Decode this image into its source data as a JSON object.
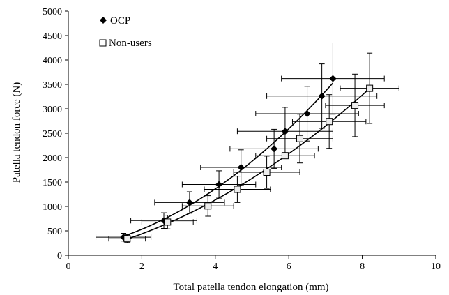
{
  "chart_data": {
    "type": "scatter",
    "title": "",
    "xlabel": "Total patella tendon elongation (mm)",
    "ylabel": "Patella tendon force (N)",
    "xlim": [
      0,
      10
    ],
    "ylim": [
      0,
      5000
    ],
    "xticks": [
      0,
      2,
      4,
      6,
      8,
      10
    ],
    "yticks": [
      0,
      500,
      1000,
      1500,
      2000,
      2500,
      3000,
      3500,
      4000,
      4500,
      5000
    ],
    "grid": false,
    "legend_position": "top-left",
    "series": [
      {
        "name": "OCP",
        "marker": "filled-diamond",
        "color": "#000000",
        "x": [
          1.5,
          2.6,
          3.3,
          4.1,
          4.7,
          5.6,
          5.9,
          6.5,
          6.9,
          7.2
        ],
        "y": [
          370,
          710,
          1080,
          1450,
          1800,
          2180,
          2540,
          2900,
          3260,
          3620
        ],
        "x_err": [
          0.75,
          0.9,
          0.95,
          1.0,
          1.1,
          1.2,
          1.3,
          1.4,
          1.5,
          1.4
        ],
        "y_err": [
          80,
          160,
          220,
          280,
          360,
          400,
          490,
          560,
          660,
          730
        ],
        "fit_curve": true
      },
      {
        "name": "Non-users",
        "marker": "open-square",
        "color": "#000000",
        "x": [
          1.6,
          2.7,
          3.8,
          4.6,
          5.4,
          5.9,
          6.3,
          7.1,
          7.8,
          8.2
        ],
        "y": [
          340,
          680,
          1010,
          1350,
          1700,
          2040,
          2390,
          2740,
          3070,
          3420
        ],
        "x_err": [
          0.5,
          0.7,
          0.7,
          0.9,
          0.9,
          0.8,
          0.9,
          1.0,
          0.8,
          0.8
        ],
        "y_err": [
          80,
          140,
          210,
          270,
          330,
          0,
          500,
          550,
          640,
          720
        ],
        "fit_curve": true
      }
    ]
  }
}
